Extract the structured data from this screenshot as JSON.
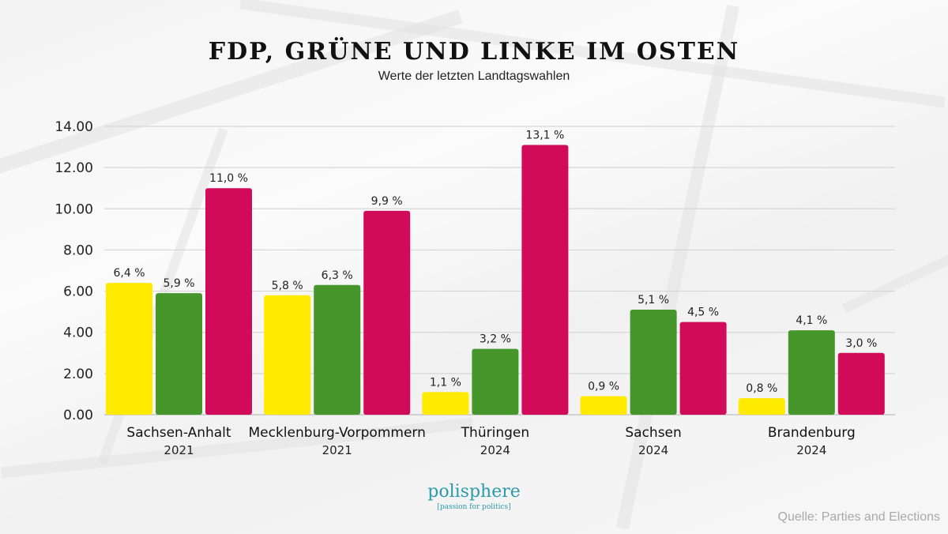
{
  "chart_data": {
    "type": "bar",
    "title": "FDP, GRÜNE UND LINKE IM OSTEN",
    "subtitle": "Werte der letzten Landtagswahlen",
    "xlabel": "",
    "ylabel": "",
    "ylim": [
      0,
      14
    ],
    "yticks": [
      0,
      2,
      4,
      6,
      8,
      10,
      12,
      14
    ],
    "ytick_labels": [
      "0.00",
      "2.00",
      "4.00",
      "6.00",
      "8.00",
      "10.00",
      "12.00",
      "14.00"
    ],
    "grid": true,
    "legend": "none",
    "categories": [
      "Sachsen-Anhalt",
      "Mecklenburg-Vorpommern",
      "Thüringen",
      "Sachsen",
      "Brandenburg"
    ],
    "category_years": [
      "2021",
      "2021",
      "2024",
      "2024",
      "2024"
    ],
    "series": [
      {
        "name": "FDP",
        "color": "#ffea00",
        "values": [
          6.4,
          5.8,
          1.1,
          0.9,
          0.8
        ],
        "labels": [
          "6,4 %",
          "5,8 %",
          "1,1 %",
          "0,9 %",
          "0,8 %"
        ]
      },
      {
        "name": "Grüne",
        "color": "#46962b",
        "values": [
          5.9,
          6.3,
          3.2,
          5.1,
          4.1
        ],
        "labels": [
          "5,9 %",
          "6,3 %",
          "3,2 %",
          "5,1 %",
          "4,1 %"
        ]
      },
      {
        "name": "Linke",
        "color": "#d20a5a",
        "values": [
          11.0,
          9.9,
          13.1,
          4.5,
          3.0
        ],
        "labels": [
          "11,0 %",
          "9,9 %",
          "13,1 %",
          "4,5 %",
          "3,0 %"
        ]
      }
    ]
  },
  "logo": {
    "name": "polisphere",
    "tagline": "[passion for politics]"
  },
  "source": "Quelle: Parties and Elections"
}
